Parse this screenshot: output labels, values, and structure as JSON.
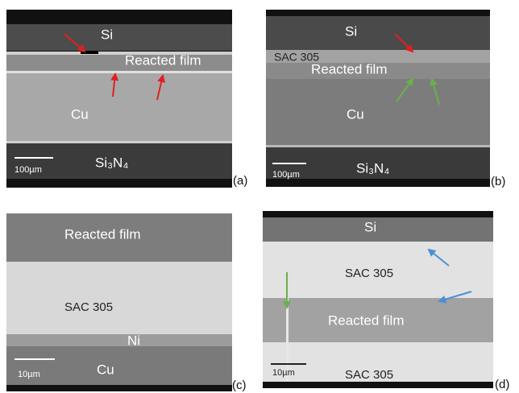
{
  "panels": [
    {
      "label": "(a)",
      "texts": [
        "Si",
        "Reacted film",
        "Cu",
        "100µm",
        "Si₃N₄"
      ]
    },
    {
      "label": "(b)",
      "texts": [
        "Si",
        "SAC 305",
        "Reacted film",
        "Cu",
        "100µm",
        "Si₃N₄"
      ]
    },
    {
      "label": "(c)",
      "texts": [
        "Reacted film",
        "SAC 305",
        "Ni",
        "10µm",
        "Cu"
      ]
    },
    {
      "label": "(d)",
      "texts": [
        "Si",
        "SAC 305",
        "Reacted film",
        "10µm",
        "SAC 305"
      ]
    }
  ]
}
